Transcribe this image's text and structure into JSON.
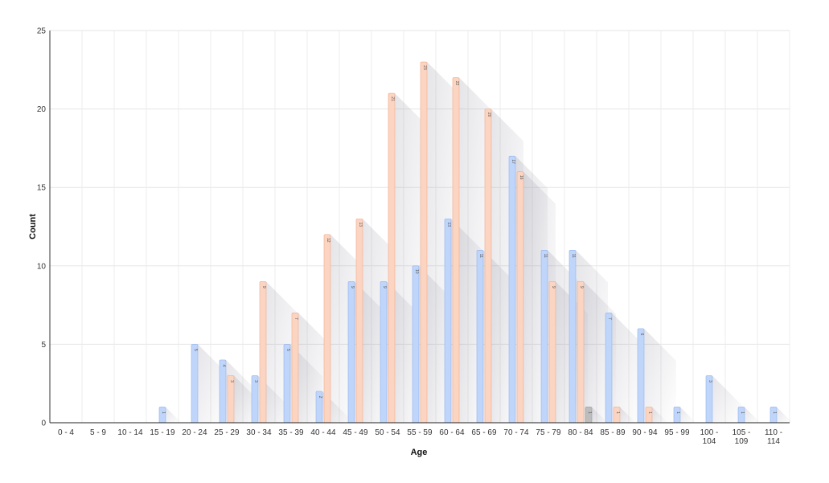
{
  "chart_data": {
    "type": "bar",
    "xlabel": "Age",
    "ylabel": "Count",
    "ylim": [
      0,
      25
    ],
    "yticks": [
      0,
      5,
      10,
      15,
      20,
      25
    ],
    "grid": true,
    "categories": [
      [
        "0 - 4"
      ],
      [
        "5 - 9"
      ],
      [
        "10 - 14"
      ],
      [
        "15 - 19"
      ],
      [
        "20 - 24"
      ],
      [
        "25 - 29"
      ],
      [
        "30 - 34"
      ],
      [
        "35 - 39"
      ],
      [
        "40 - 44"
      ],
      [
        "45 - 49"
      ],
      [
        "50 - 54"
      ],
      [
        "55 - 59"
      ],
      [
        "60 - 64"
      ],
      [
        "65 - 69"
      ],
      [
        "70 - 74"
      ],
      [
        "75 - 79"
      ],
      [
        "80 - 84"
      ],
      [
        "85 - 89"
      ],
      [
        "90 - 94"
      ],
      [
        "95 - 99"
      ],
      [
        "100 -",
        "104"
      ],
      [
        "105 -",
        "109"
      ],
      [
        "110 -",
        "114"
      ]
    ],
    "series": [
      {
        "color": "#bfd5fa",
        "stroke": "#93b4ee",
        "values": [
          0,
          0,
          0,
          1,
          5,
          4,
          3,
          5,
          2,
          9,
          9,
          10,
          13,
          11,
          17,
          11,
          11,
          7,
          6,
          1,
          3,
          1,
          1
        ]
      },
      {
        "color": "#fbd5c2",
        "stroke": "#f0ab8c",
        "values": [
          0,
          0,
          0,
          0,
          0,
          3,
          9,
          7,
          12,
          13,
          21,
          23,
          22,
          20,
          16,
          9,
          9,
          1,
          1,
          0,
          0,
          0,
          0
        ]
      },
      {
        "color": "#bdbdbd",
        "stroke": "#999999",
        "values": [
          0,
          0,
          0,
          0,
          0,
          0,
          0,
          0,
          0,
          0,
          0,
          0,
          0,
          0,
          0,
          0,
          1,
          0,
          0,
          0,
          0,
          0,
          0
        ]
      }
    ]
  }
}
